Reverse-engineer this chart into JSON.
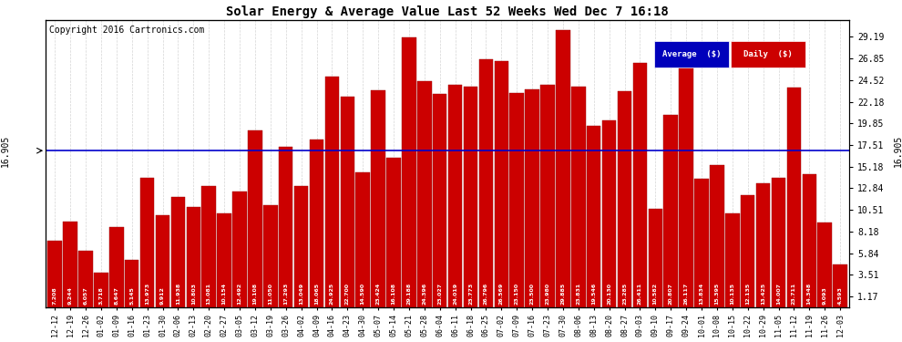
{
  "title": "Solar Energy & Average Value Last 52 Weeks Wed Dec 7 16:18",
  "copyright": "Copyright 2016 Cartronics.com",
  "average_value": 16.905,
  "bar_color": "#cc0000",
  "average_line_color": "#0000cc",
  "background_color": "#ffffff",
  "plot_bg_color": "#ffffff",
  "grid_color": "#aaaaaa",
  "categories": [
    "12-12",
    "12-19",
    "12-26",
    "01-02",
    "01-09",
    "01-16",
    "01-23",
    "01-30",
    "02-06",
    "02-13",
    "02-20",
    "02-27",
    "03-05",
    "03-12",
    "03-19",
    "03-26",
    "04-02",
    "04-09",
    "04-16",
    "04-23",
    "04-30",
    "05-07",
    "05-14",
    "05-21",
    "05-28",
    "06-04",
    "06-11",
    "06-18",
    "06-25",
    "07-02",
    "07-09",
    "07-16",
    "07-23",
    "07-30",
    "08-06",
    "08-13",
    "08-20",
    "08-27",
    "09-03",
    "09-10",
    "09-17",
    "09-24",
    "10-01",
    "10-08",
    "10-15",
    "10-22",
    "10-29",
    "11-05",
    "11-12",
    "11-19",
    "11-26",
    "12-03"
  ],
  "values": [
    7.208,
    9.244,
    6.057,
    3.718,
    8.647,
    5.145,
    13.973,
    9.912,
    11.938,
    10.803,
    13.081,
    10.154,
    12.492,
    19.108,
    11.05,
    17.293,
    13.049,
    18.065,
    24.925,
    22.7,
    14.59,
    23.424,
    16.108,
    29.188,
    24.396,
    23.027,
    24.019,
    23.773,
    26.796,
    26.569,
    23.15,
    23.5,
    23.98,
    29.885,
    23.831,
    19.546,
    20.13,
    23.285,
    26.411,
    10.582,
    20.807,
    26.117,
    13.834,
    15.395,
    10.135,
    12.135,
    13.425,
    14.007,
    23.711,
    14.348,
    9.093,
    4.593
  ],
  "ylim_min": 0,
  "ylim_max": 31,
  "yticks_right": [
    29.19,
    26.85,
    24.52,
    22.18,
    19.85,
    17.51,
    15.18,
    12.84,
    10.51,
    8.18,
    5.84,
    3.51,
    1.17
  ],
  "legend_avg_color": "#0000bb",
  "legend_daily_color": "#cc0000",
  "legend_avg_label": "Average  ($)",
  "legend_daily_label": "Daily  ($)"
}
